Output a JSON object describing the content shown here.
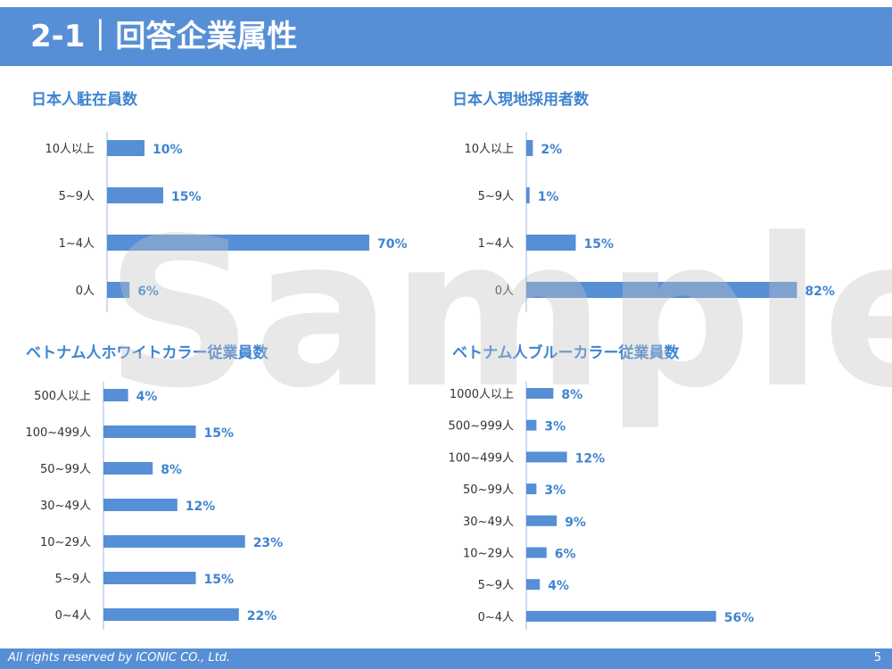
{
  "header": {
    "title": "2-1｜回答企業属性"
  },
  "footer": {
    "copyright": "All rights reserved by ICONIC CO., Ltd.",
    "page_number": "5"
  },
  "watermark": "Sample",
  "colors": {
    "accent": "#578fd6",
    "bar": "#578fd6",
    "label": "#3f84d0"
  },
  "chart_data": [
    {
      "type": "bar",
      "orientation": "horizontal",
      "title": "日本人駐在員数",
      "categories": [
        "10人以上",
        "5~9人",
        "1~4人",
        "0人"
      ],
      "values": [
        10,
        15,
        70,
        6
      ],
      "labels": [
        "10%",
        "15%",
        "70%",
        "6%"
      ],
      "unit": "%"
    },
    {
      "type": "bar",
      "orientation": "horizontal",
      "title": "日本人現地採用者数",
      "categories": [
        "10人以上",
        "5~9人",
        "1~4人",
        "0人"
      ],
      "values": [
        2,
        1,
        15,
        82
      ],
      "labels": [
        "2%",
        "1%",
        "15%",
        "82%"
      ],
      "unit": "%"
    },
    {
      "type": "bar",
      "orientation": "horizontal",
      "title": "ベトナム人ホワイトカラー従業員数",
      "categories": [
        "500人以上",
        "100~499人",
        "50~99人",
        "30~49人",
        "10~29人",
        "5~9人",
        "0~4人"
      ],
      "values": [
        4,
        15,
        8,
        12,
        23,
        15,
        22
      ],
      "labels": [
        "4%",
        "15%",
        "8%",
        "12%",
        "23%",
        "15%",
        "22%"
      ],
      "unit": "%"
    },
    {
      "type": "bar",
      "orientation": "horizontal",
      "title": "ベトナム人ブルーカラー従業員数",
      "categories": [
        "1000人以上",
        "500~999人",
        "100~499人",
        "50~99人",
        "30~49人",
        "10~29人",
        "5~9人",
        "0~4人"
      ],
      "values": [
        8,
        3,
        12,
        3,
        9,
        6,
        4,
        56
      ],
      "labels": [
        "8%",
        "3%",
        "12%",
        "3%",
        "9%",
        "6%",
        "4%",
        "56%"
      ],
      "unit": "%"
    }
  ]
}
